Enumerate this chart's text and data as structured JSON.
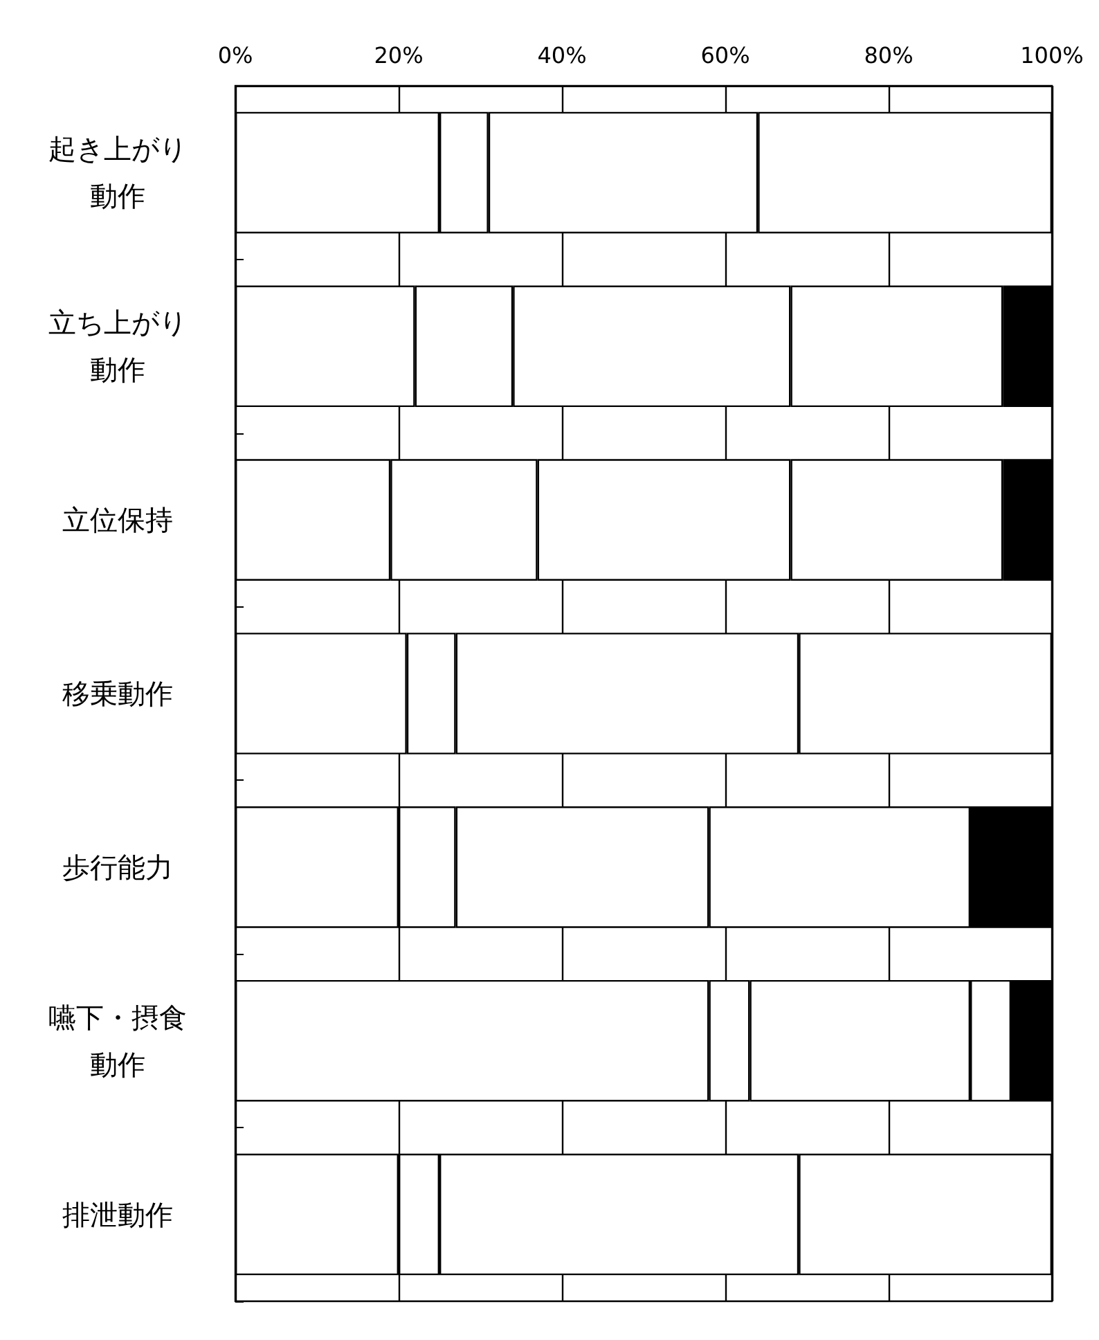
{
  "chart_data": {
    "type": "bar",
    "orientation": "horizontal",
    "stacked": true,
    "categories": [
      "起き上がり動作",
      "立ち上がり動作",
      "立位保持",
      "移乗動作",
      "歩行能力",
      "嚥下・摂食動作",
      "排泄動作"
    ],
    "series": [
      {
        "color": "#ffffff",
        "values": [
          25,
          22,
          19,
          21,
          20,
          58,
          20
        ]
      },
      {
        "color": "#ffffff",
        "values": [
          6,
          12,
          18,
          6,
          7,
          5,
          5
        ]
      },
      {
        "color": "#ffffff",
        "values": [
          33,
          34,
          31,
          42,
          31,
          27,
          44
        ]
      },
      {
        "color": "#ffffff",
        "values": [
          36,
          26,
          26,
          31,
          32,
          5,
          31
        ]
      },
      {
        "color": "#000000",
        "values": [
          0,
          6,
          6,
          0,
          10,
          5,
          0
        ]
      }
    ],
    "xlim": [
      0,
      100
    ],
    "xticks": [
      {
        "value": 0,
        "label": "0%"
      },
      {
        "value": 20,
        "label": "20%"
      },
      {
        "value": 40,
        "label": "40%"
      },
      {
        "value": 60,
        "label": "60%"
      },
      {
        "value": 80,
        "label": "80%"
      },
      {
        "value": 100,
        "label": "100%"
      }
    ],
    "grid": "x"
  }
}
